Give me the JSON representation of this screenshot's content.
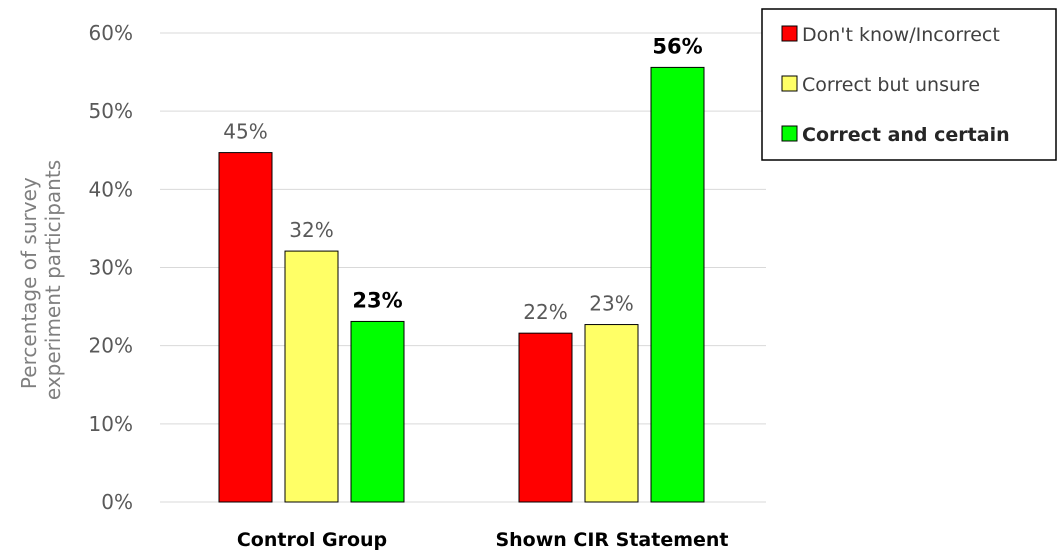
{
  "chart_data": {
    "type": "bar",
    "title": "",
    "xlabel": "",
    "ylabel": "Percentage of survey experiment participants",
    "ylabel_lines": [
      "Percentage of survey",
      "experiment participants"
    ],
    "ylim": [
      0,
      60
    ],
    "yticks": [
      0,
      10,
      20,
      30,
      40,
      50,
      60
    ],
    "ytick_labels": [
      "0%",
      "10%",
      "20%",
      "30%",
      "40%",
      "50%",
      "60%"
    ],
    "grid": true,
    "legend_position": "top-right",
    "categories": [
      "Control Group",
      "Shown CIR Statement"
    ],
    "series": [
      {
        "name": "Don't know/Incorrect",
        "color": "#ff0000",
        "values": [
          44.7,
          21.6
        ],
        "labels": [
          "45%",
          "22%"
        ],
        "bold": false
      },
      {
        "name": "Correct but unsure",
        "color": "#ffff66",
        "values": [
          32.1,
          22.7
        ],
        "labels": [
          "32%",
          "23%"
        ],
        "bold": false
      },
      {
        "name": "Correct and certain",
        "color": "#00ff00",
        "values": [
          23.1,
          55.6
        ],
        "labels": [
          "23%",
          "56%"
        ],
        "bold": true
      }
    ]
  }
}
